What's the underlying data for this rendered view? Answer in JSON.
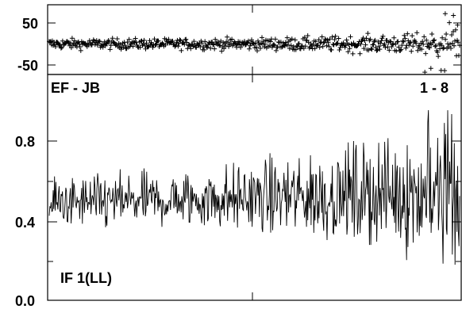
{
  "chart_data": [
    {
      "type": "scatter",
      "panel": "top",
      "marker": "plus",
      "ylim": [
        -70,
        85
      ],
      "yticks": [
        "50",
        "-50"
      ],
      "ytick_values": [
        50,
        -50
      ],
      "x_range": [
        0,
        1
      ],
      "series": [
        {
          "description": "phase residuals scattered around 0, spread grows toward the right; a few outliers above +50 at the far right"
        }
      ],
      "grid": false
    },
    {
      "type": "line",
      "panel": "bottom",
      "ylim": [
        0.0,
        1.08
      ],
      "yticks": [
        "0.8",
        "0.4",
        "0.0"
      ],
      "ytick_values": [
        0.8,
        0.4,
        0.0
      ],
      "x_range": [
        0,
        1
      ],
      "series": [
        {
          "description": "noisy amplitude trace centered near 0.5; about 0.38-0.62 at left, widening to about 0.1-0.9 at the far right"
        }
      ],
      "grid": false
    }
  ],
  "labels": {
    "baseline": "EF - JB",
    "channels": "1 - 8",
    "if": "IF 1(LL)"
  },
  "colors": {
    "ink": "#000000",
    "background": "#ffffff"
  }
}
